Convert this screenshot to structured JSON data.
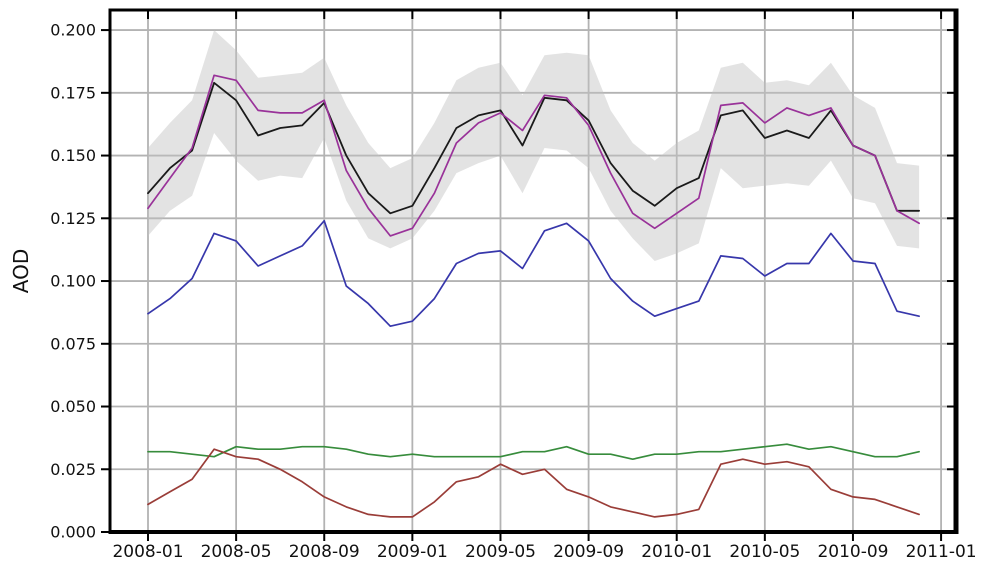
{
  "figure": {
    "ylabel": "AOD",
    "background": "#ffffff",
    "grid_color": "#b3b3b3",
    "spine_color": "#000000"
  },
  "chart_data": {
    "type": "line",
    "title": "",
    "xlabel": "",
    "ylabel": "AOD",
    "grid": true,
    "legend": "none",
    "ylim": [
      0,
      0.208
    ],
    "y_ticks": [
      0.0,
      0.025,
      0.05,
      0.075,
      0.1,
      0.125,
      0.15,
      0.175,
      0.2
    ],
    "y_tick_labels": [
      "0.000",
      "0.025",
      "0.050",
      "0.075",
      "0.100",
      "0.125",
      "0.150",
      "0.175",
      "0.200"
    ],
    "x_tick_labels": [
      "2008-01",
      "2008-05",
      "2008-09",
      "2009-01",
      "2009-05",
      "2009-09",
      "2010-01",
      "2010-05",
      "2010-09",
      "2011-01"
    ],
    "x": [
      "2008-01",
      "2008-02",
      "2008-03",
      "2008-04",
      "2008-05",
      "2008-06",
      "2008-07",
      "2008-08",
      "2008-09",
      "2008-10",
      "2008-11",
      "2008-12",
      "2009-01",
      "2009-02",
      "2009-03",
      "2009-04",
      "2009-05",
      "2009-06",
      "2009-07",
      "2009-08",
      "2009-09",
      "2009-10",
      "2009-11",
      "2009-12",
      "2010-01",
      "2010-02",
      "2010-03",
      "2010-04",
      "2010-05",
      "2010-06",
      "2010-07",
      "2010-08",
      "2010-09",
      "2010-10",
      "2010-11",
      "2010-12"
    ],
    "series": [
      {
        "name": "black-line",
        "color": "#1a1a1a",
        "width": 1.8,
        "values": [
          0.135,
          0.145,
          0.152,
          0.179,
          0.172,
          0.158,
          0.161,
          0.162,
          0.171,
          0.15,
          0.135,
          0.127,
          0.13,
          0.145,
          0.161,
          0.166,
          0.168,
          0.154,
          0.173,
          0.172,
          0.164,
          0.147,
          0.136,
          0.13,
          0.137,
          0.141,
          0.166,
          0.168,
          0.157,
          0.16,
          0.157,
          0.168,
          0.154,
          0.15,
          0.128,
          0.128
        ]
      },
      {
        "name": "purple-line",
        "color": "#993299",
        "width": 1.7,
        "values": [
          0.129,
          0.141,
          0.153,
          0.182,
          0.18,
          0.168,
          0.167,
          0.167,
          0.172,
          0.144,
          0.129,
          0.118,
          0.121,
          0.135,
          0.155,
          0.163,
          0.167,
          0.16,
          0.174,
          0.173,
          0.162,
          0.143,
          0.127,
          0.121,
          0.127,
          0.133,
          0.17,
          0.171,
          0.163,
          0.169,
          0.166,
          0.169,
          0.154,
          0.15,
          0.128,
          0.123
        ]
      },
      {
        "name": "blue-line",
        "color": "#3737ab",
        "width": 1.7,
        "values": [
          0.087,
          0.093,
          0.101,
          0.119,
          0.116,
          0.106,
          0.11,
          0.114,
          0.124,
          0.098,
          0.091,
          0.082,
          0.084,
          0.093,
          0.107,
          0.111,
          0.112,
          0.105,
          0.12,
          0.123,
          0.116,
          0.101,
          0.092,
          0.086,
          0.089,
          0.092,
          0.11,
          0.109,
          0.102,
          0.107,
          0.107,
          0.119,
          0.108,
          0.107,
          0.088,
          0.086
        ]
      },
      {
        "name": "green-line",
        "color": "#378c3c",
        "width": 1.7,
        "values": [
          0.032,
          0.032,
          0.031,
          0.03,
          0.034,
          0.033,
          0.033,
          0.034,
          0.034,
          0.033,
          0.031,
          0.03,
          0.031,
          0.03,
          0.03,
          0.03,
          0.03,
          0.032,
          0.032,
          0.034,
          0.031,
          0.031,
          0.029,
          0.031,
          0.031,
          0.032,
          0.032,
          0.033,
          0.034,
          0.035,
          0.033,
          0.034,
          0.032,
          0.03,
          0.03,
          0.032
        ]
      },
      {
        "name": "dark-red-line",
        "color": "#9a3d38",
        "width": 1.7,
        "values": [
          0.011,
          0.016,
          0.021,
          0.033,
          0.03,
          0.029,
          0.025,
          0.02,
          0.014,
          0.01,
          0.007,
          0.006,
          0.006,
          0.012,
          0.02,
          0.022,
          0.027,
          0.023,
          0.025,
          0.017,
          0.014,
          0.01,
          0.008,
          0.006,
          0.007,
          0.009,
          0.027,
          0.029,
          0.027,
          0.028,
          0.026,
          0.017,
          0.014,
          0.013,
          0.01,
          0.007
        ]
      }
    ],
    "band": {
      "name": "uncertainty-band",
      "color": "#c0c0c0",
      "opacity": 0.45,
      "upper": [
        0.153,
        0.163,
        0.172,
        0.2,
        0.192,
        0.181,
        0.182,
        0.183,
        0.189,
        0.17,
        0.155,
        0.145,
        0.149,
        0.163,
        0.18,
        0.185,
        0.187,
        0.174,
        0.19,
        0.191,
        0.19,
        0.168,
        0.155,
        0.148,
        0.155,
        0.16,
        0.185,
        0.187,
        0.179,
        0.18,
        0.178,
        0.187,
        0.174,
        0.169,
        0.147,
        0.146
      ],
      "lower": [
        0.118,
        0.128,
        0.134,
        0.159,
        0.148,
        0.14,
        0.142,
        0.141,
        0.157,
        0.132,
        0.117,
        0.113,
        0.117,
        0.128,
        0.143,
        0.147,
        0.15,
        0.135,
        0.153,
        0.152,
        0.145,
        0.128,
        0.117,
        0.108,
        0.111,
        0.115,
        0.145,
        0.137,
        0.138,
        0.139,
        0.138,
        0.148,
        0.133,
        0.131,
        0.114,
        0.113
      ]
    }
  }
}
